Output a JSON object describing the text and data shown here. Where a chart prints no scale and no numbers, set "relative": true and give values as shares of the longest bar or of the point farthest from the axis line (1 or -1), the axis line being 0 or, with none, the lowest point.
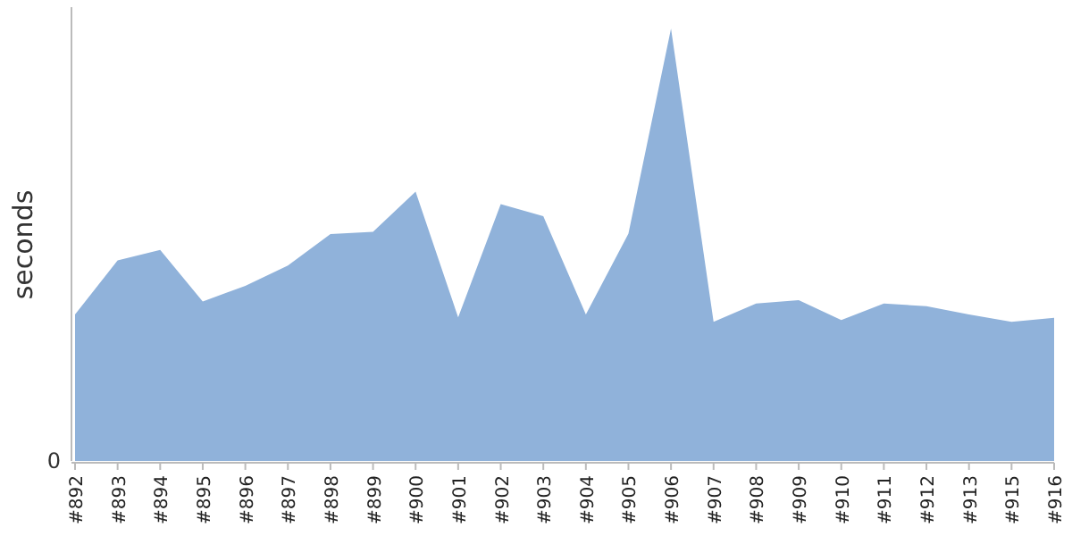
{
  "chart_data": {
    "type": "area",
    "ylabel": "seconds",
    "relative": true,
    "annotations": [
      "0"
    ],
    "categories": [
      "#892",
      "#893",
      "#894",
      "#895",
      "#896",
      "#897",
      "#898",
      "#899",
      "#900",
      "#901",
      "#902",
      "#903",
      "#904",
      "#905",
      "#906",
      "#907",
      "#908",
      "#909",
      "#910",
      "#911",
      "#912",
      "#913",
      "#915",
      "#916"
    ],
    "series": [
      {
        "color": "#90b2da",
        "values": [
          0.339,
          0.464,
          0.488,
          0.369,
          0.405,
          0.452,
          0.525,
          0.53,
          0.623,
          0.332,
          0.594,
          0.566,
          0.339,
          0.526,
          1,
          0.322,
          0.364,
          0.372,
          0.326,
          0.364,
          0.358,
          0.339,
          0.322,
          0.331
        ]
      }
    ]
  }
}
